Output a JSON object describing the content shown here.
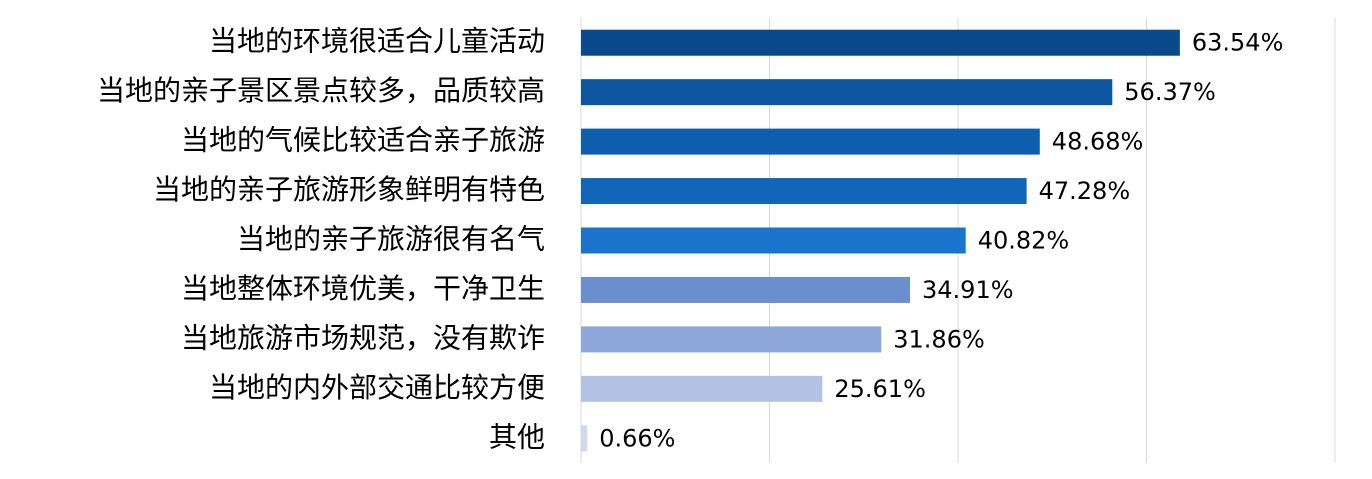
{
  "chart_data": {
    "type": "bar",
    "orientation": "horizontal",
    "categories": [
      "当地的环境很适合儿童活动",
      "当地的亲子景区景点较多，品质较高",
      "当地的气候比较适合亲子旅游",
      "当地的亲子旅游形象鲜明有特色",
      "当地的亲子旅游很有名气",
      "当地整体环境优美，干净卫生",
      "当地旅游市场规范，没有欺诈",
      "当地的内外部交通比较方便",
      "其他"
    ],
    "values": [
      63.54,
      56.37,
      48.68,
      47.28,
      40.82,
      34.91,
      31.86,
      25.61,
      0.66
    ],
    "value_labels": [
      "63.54%",
      "56.37%",
      "48.68%",
      "47.28%",
      "40.82%",
      "34.91%",
      "31.86%",
      "25.61%",
      "0.66%"
    ],
    "colors": [
      "#0a4a8c",
      "#0c569f",
      "#0e5fae",
      "#1166ba",
      "#1a74cc",
      "#6a8fcc",
      "#8fa8da",
      "#b1c2e5",
      "#cfd9ee"
    ],
    "xlim": [
      0,
      80
    ],
    "xticks": [
      0,
      20,
      40,
      60,
      80
    ],
    "grid": true
  }
}
